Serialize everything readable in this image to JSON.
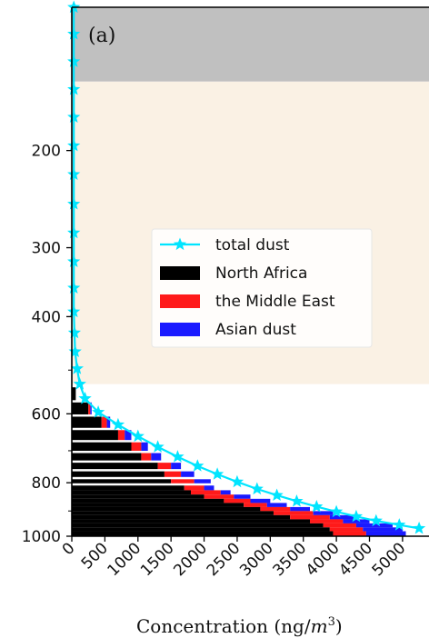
{
  "chart_data": {
    "type": "bar",
    "orientation": "horizontal-stacked-with-line",
    "panel_label": "(a)",
    "xlabel": "Concentration (ng/m³)",
    "xlabel_text": "Concentration (ng/",
    "xlabel_unit_base": "m",
    "xlabel_unit_exp": "3",
    "xlabel_close": ")",
    "ylabel": "",
    "xlim": [
      0,
      5400
    ],
    "ylim_pressure_hpa": [
      1000,
      110
    ],
    "y_scale": "log (pressure, inverted)",
    "x_ticks": [
      0,
      500,
      1000,
      1500,
      2000,
      2500,
      3000,
      3500,
      4000,
      4500,
      5000
    ],
    "y_ticks": [
      200,
      300,
      400,
      600,
      800,
      1000
    ],
    "y_minor_ticks": [
      500,
      700,
      900
    ],
    "shaded_regions": [
      {
        "from_hpa": 110,
        "to_hpa": 150,
        "color": "#c0c0c0"
      },
      {
        "from_hpa": 150,
        "to_hpa": 530,
        "color": "#faf1e4"
      }
    ],
    "legend": {
      "placement": "center",
      "entries": [
        {
          "label": "total dust",
          "type": "line-star",
          "color": "#00e5ff"
        },
        {
          "label": "North Africa",
          "type": "bar",
          "color": "#000000"
        },
        {
          "label": "the Middle East",
          "type": "bar",
          "color": "#ff1a1a"
        },
        {
          "label": "Asian dust",
          "type": "bar",
          "color": "#1a1aff"
        }
      ]
    },
    "series": [
      {
        "name": "total dust",
        "color": "#00e5ff",
        "marker": "star",
        "points": [
          {
            "p": 110,
            "x": 30
          },
          {
            "p": 123,
            "x": 30
          },
          {
            "p": 138,
            "x": 30
          },
          {
            "p": 155,
            "x": 30
          },
          {
            "p": 174,
            "x": 30
          },
          {
            "p": 196,
            "x": 30
          },
          {
            "p": 221,
            "x": 30
          },
          {
            "p": 250,
            "x": 30
          },
          {
            "p": 282,
            "x": 30
          },
          {
            "p": 318,
            "x": 30
          },
          {
            "p": 355,
            "x": 30
          },
          {
            "p": 392,
            "x": 30
          },
          {
            "p": 428,
            "x": 40
          },
          {
            "p": 463,
            "x": 50
          },
          {
            "p": 497,
            "x": 80
          },
          {
            "p": 530,
            "x": 120
          },
          {
            "p": 563,
            "x": 200
          },
          {
            "p": 596,
            "x": 400
          },
          {
            "p": 628,
            "x": 700
          },
          {
            "p": 659,
            "x": 1000
          },
          {
            "p": 689,
            "x": 1300
          },
          {
            "p": 718,
            "x": 1600
          },
          {
            "p": 746,
            "x": 1900
          },
          {
            "p": 772,
            "x": 2200
          },
          {
            "p": 797,
            "x": 2500
          },
          {
            "p": 821,
            "x": 2800
          },
          {
            "p": 843,
            "x": 3100
          },
          {
            "p": 864,
            "x": 3400
          },
          {
            "p": 884,
            "x": 3700
          },
          {
            "p": 903,
            "x": 4000
          },
          {
            "p": 921,
            "x": 4300
          },
          {
            "p": 938,
            "x": 4600
          },
          {
            "p": 954,
            "x": 4950
          },
          {
            "p": 968,
            "x": 5250
          }
        ]
      },
      {
        "name": "North Africa",
        "color": "#000000"
      },
      {
        "name": "the Middle East",
        "color": "#ff1a1a"
      },
      {
        "name": "Asian dust",
        "color": "#1a1aff"
      }
    ],
    "levels": [
      {
        "p": 555,
        "north_africa": 60,
        "middle_east": 0,
        "asian": 0
      },
      {
        "p": 590,
        "north_africa": 250,
        "middle_east": 30,
        "asian": 20
      },
      {
        "p": 625,
        "north_africa": 450,
        "middle_east": 80,
        "asian": 50
      },
      {
        "p": 660,
        "north_africa": 700,
        "middle_east": 100,
        "asian": 100
      },
      {
        "p": 692,
        "north_africa": 900,
        "middle_east": 150,
        "asian": 100
      },
      {
        "p": 722,
        "north_africa": 1050,
        "middle_east": 150,
        "asian": 150
      },
      {
        "p": 750,
        "north_africa": 1300,
        "middle_east": 200,
        "asian": 150
      },
      {
        "p": 776,
        "north_africa": 1400,
        "middle_east": 250,
        "asian": 200
      },
      {
        "p": 801,
        "north_africa": 1500,
        "middle_east": 350,
        "asian": 250
      },
      {
        "p": 818,
        "north_africa": 1700,
        "middle_east": 300,
        "asian": 150
      },
      {
        "p": 833,
        "north_africa": 1800,
        "middle_east": 450,
        "asian": 150
      },
      {
        "p": 848,
        "north_africa": 2000,
        "middle_east": 450,
        "asian": 250
      },
      {
        "p": 863,
        "north_africa": 2300,
        "middle_east": 400,
        "asian": 300
      },
      {
        "p": 878,
        "north_africa": 2600,
        "middle_east": 350,
        "asian": 300
      },
      {
        "p": 893,
        "north_africa": 2850,
        "middle_east": 450,
        "asian": 300
      },
      {
        "p": 908,
        "north_africa": 3050,
        "middle_east": 600,
        "asian": 300
      },
      {
        "p": 924,
        "north_africa": 3300,
        "middle_east": 600,
        "asian": 400
      },
      {
        "p": 940,
        "north_africa": 3600,
        "middle_east": 500,
        "asian": 400
      },
      {
        "p": 956,
        "north_africa": 3800,
        "middle_east": 500,
        "asian": 550
      },
      {
        "p": 972,
        "north_africa": 3900,
        "middle_east": 500,
        "asian": 600
      },
      {
        "p": 987,
        "north_africa": 3950,
        "middle_east": 500,
        "asian": 600
      }
    ]
  }
}
